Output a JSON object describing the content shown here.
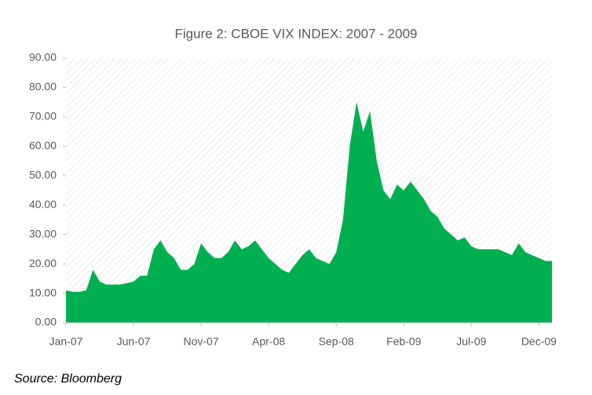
{
  "chart_data": {
    "type": "area",
    "title": "Figure 2: CBOE VIX INDEX: 2007 - 2009",
    "source": "Source: Bloomberg",
    "color": "#00b050",
    "categories": [
      "Jan-07",
      null,
      null,
      null,
      null,
      null,
      null,
      null,
      null,
      null,
      "Jun-07",
      null,
      null,
      null,
      null,
      null,
      null,
      null,
      null,
      null,
      "Nov-07",
      null,
      null,
      null,
      null,
      null,
      null,
      null,
      null,
      null,
      "Apr-08",
      null,
      null,
      null,
      null,
      null,
      null,
      null,
      null,
      null,
      "Sep-08",
      null,
      null,
      null,
      null,
      null,
      null,
      null,
      null,
      null,
      "Feb-09",
      null,
      null,
      null,
      null,
      null,
      null,
      null,
      null,
      null,
      "Jul-09",
      null,
      null,
      null,
      null,
      null,
      null,
      null,
      null,
      null,
      "Dec-09",
      null
    ],
    "values": [
      11,
      10.5,
      10.5,
      11,
      18,
      14,
      13,
      13,
      13,
      13.5,
      14,
      16,
      16,
      25,
      28,
      24,
      22,
      18,
      18,
      20,
      27,
      24,
      22,
      22,
      24,
      28,
      25,
      26,
      28,
      25,
      22,
      20,
      18,
      17,
      20,
      23,
      25,
      22,
      21,
      20,
      24,
      35,
      60,
      75,
      65,
      72,
      55,
      45,
      42,
      47,
      45,
      48,
      45,
      42,
      38,
      36,
      32,
      30,
      28,
      29,
      26,
      25,
      25,
      25,
      25,
      24,
      23,
      27,
      24,
      23,
      22,
      21
    ],
    "ylim": [
      0,
      90
    ],
    "yticks": [
      {
        "value": 0,
        "label": "0.00"
      },
      {
        "value": 10,
        "label": "10.00"
      },
      {
        "value": 20,
        "label": "20.00"
      },
      {
        "value": 30,
        "label": "30.00"
      },
      {
        "value": 40,
        "label": "40.00"
      },
      {
        "value": 50,
        "label": "50.00"
      },
      {
        "value": 60,
        "label": "60.00"
      },
      {
        "value": 70,
        "label": "70.00"
      },
      {
        "value": 80,
        "label": "80.00"
      },
      {
        "value": 90,
        "label": "90.00"
      }
    ]
  }
}
